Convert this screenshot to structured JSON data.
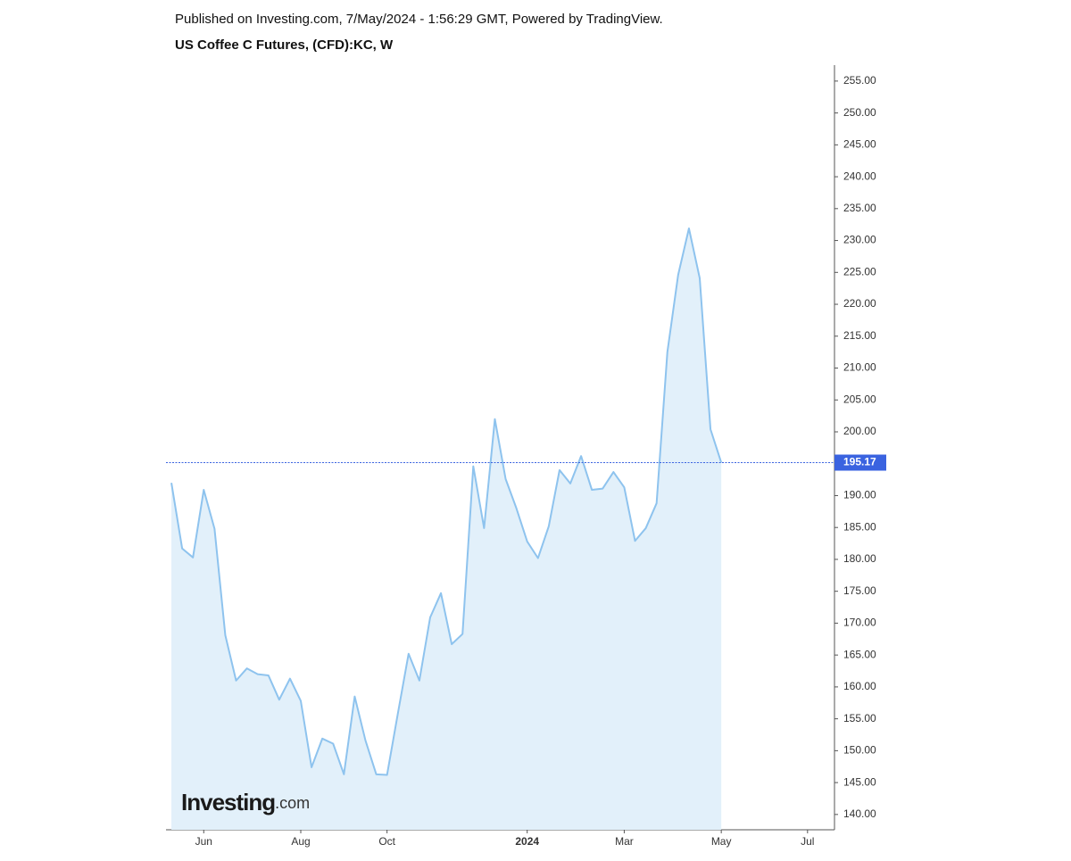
{
  "header": {
    "published": "Published on Investing.com, 7/May/2024 - 1:56:29 GMT, Powered by TradingView."
  },
  "chart_data": {
    "type": "area",
    "title": "US Coffee C Futures, (CFD):KC, W",
    "categories": [
      null,
      null,
      null,
      "Jun",
      null,
      null,
      null,
      null,
      null,
      null,
      null,
      null,
      "Aug",
      null,
      null,
      null,
      null,
      null,
      null,
      null,
      "Oct",
      null,
      null,
      null,
      null,
      null,
      null,
      null,
      null,
      null,
      null,
      null,
      null,
      "2024",
      null,
      null,
      null,
      null,
      null,
      null,
      null,
      null,
      "Mar",
      null,
      null,
      null,
      null,
      null,
      null,
      null,
      null,
      "May",
      null,
      null,
      null,
      null,
      null,
      null,
      null,
      "Jul",
      null,
      null
    ],
    "values": [
      192.0,
      181.7,
      180.3,
      190.9,
      184.8,
      168.1,
      161.0,
      162.9,
      162.0,
      161.8,
      158.0,
      161.3,
      157.8,
      147.4,
      151.9,
      151.1,
      146.3,
      158.5,
      151.6,
      146.3,
      146.2,
      155.8,
      165.2,
      161.0,
      170.9,
      174.7,
      166.7,
      168.3,
      194.6,
      184.9,
      202.0,
      192.6,
      188.0,
      182.8,
      180.2,
      185.2,
      194.0,
      191.9,
      196.2,
      190.9,
      191.1,
      193.7,
      191.3,
      182.9,
      184.9,
      188.8,
      212.5,
      224.6,
      231.9,
      224.1,
      200.4,
      195.17,
      null,
      null,
      null,
      null,
      null,
      null,
      null,
      null,
      null,
      null
    ],
    "color": "#8ec3ee",
    "fill": "#e2f0fa",
    "current_value": 195.17,
    "current_color": "#3a63e0",
    "ylim": [
      137.6,
      257.5
    ],
    "yticks": [
      {
        "value": 140,
        "label": "140.00"
      },
      {
        "value": 145,
        "label": "145.00"
      },
      {
        "value": 150,
        "label": "150.00"
      },
      {
        "value": 155,
        "label": "155.00"
      },
      {
        "value": 160,
        "label": "160.00"
      },
      {
        "value": 165,
        "label": "165.00"
      },
      {
        "value": 170,
        "label": "170.00"
      },
      {
        "value": 175,
        "label": "175.00"
      },
      {
        "value": 180,
        "label": "180.00"
      },
      {
        "value": 185,
        "label": "185.00"
      },
      {
        "value": 190,
        "label": "190.00"
      },
      {
        "value": 195,
        "label": "195.00"
      },
      {
        "value": 200,
        "label": "200.00"
      },
      {
        "value": 205,
        "label": "205.00"
      },
      {
        "value": 210,
        "label": "210.00"
      },
      {
        "value": 215,
        "label": "215.00"
      },
      {
        "value": 220,
        "label": "220.00"
      },
      {
        "value": 225,
        "label": "225.00"
      },
      {
        "value": 230,
        "label": "230.00"
      },
      {
        "value": 235,
        "label": "235.00"
      },
      {
        "value": 240,
        "label": "240.00"
      },
      {
        "value": 245,
        "label": "245.00"
      },
      {
        "value": 250,
        "label": "250.00"
      },
      {
        "value": 255,
        "label": "255.00"
      }
    ],
    "watermark": {
      "brand": "Investing",
      "suffix": ".com"
    }
  }
}
